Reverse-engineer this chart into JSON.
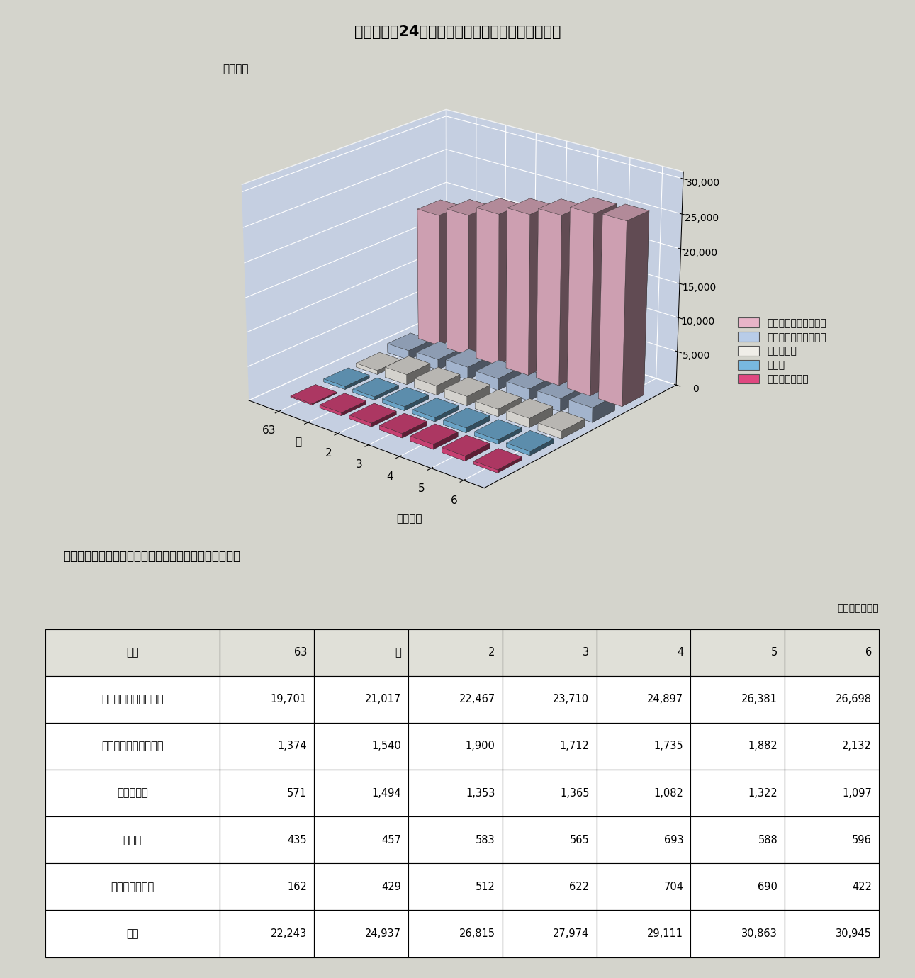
{
  "title": "第３－２－24図　情報通信産業の設備投資の推移",
  "years": [
    "63",
    "元",
    "2",
    "3",
    "4",
    "5",
    "6"
  ],
  "year_label": "（年度）",
  "y_label": "（億円）",
  "series": [
    {
      "name": "第一種電気通信事業者",
      "values": [
        19701,
        21017,
        22467,
        23710,
        24897,
        26381,
        26698
      ],
      "color_face": "#E8B4C8",
      "color_side": "#C890A8",
      "color_top": "#F0D0DC"
    },
    {
      "name": "第二種電気通信事業者",
      "values": [
        1374,
        1540,
        1900,
        1712,
        1735,
        1882,
        2132
      ],
      "color_face": "#B8CCE8",
      "color_side": "#90AACC",
      "color_top": "#D0DCEF"
    },
    {
      "name": "民放事業者",
      "values": [
        571,
        1494,
        1353,
        1365,
        1082,
        1322,
        1097
      ],
      "color_face": "#F0EEE8",
      "color_side": "#D0CCCC",
      "color_top": "#FFFFFF"
    },
    {
      "name": "ＮＨＫ",
      "values": [
        435,
        457,
        583,
        565,
        693,
        588,
        596
      ],
      "color_face": "#78B8E0",
      "color_side": "#5090BC",
      "color_top": "#A0CCF0"
    },
    {
      "name": "ケーブルテレビ",
      "values": [
        162,
        429,
        512,
        622,
        704,
        690,
        422
      ],
      "color_face": "#E04880",
      "color_side": "#BC2060",
      "color_top": "#F070A0"
    }
  ],
  "yticks": [
    0,
    5000,
    10000,
    15000,
    20000,
    25000,
    30000
  ],
  "source_text": "「通信産業設備投資等実態調査」（郵政省）により作成",
  "unit_text": "（単位：億円）",
  "table_headers": [
    "年度",
    "63",
    "元",
    "2",
    "3",
    "4",
    "5",
    "6"
  ],
  "table_rows": [
    [
      "第一種電気通信事業者",
      "19,701",
      "21,017",
      "22,467",
      "23,710",
      "24,897",
      "26,381",
      "26,698"
    ],
    [
      "第二種電気通信事業者",
      "1,374",
      "1,540",
      "1,900",
      "1,712",
      "1,735",
      "1,882",
      "2,132"
    ],
    [
      "民放事業者",
      "571",
      "1,494",
      "1,353",
      "1,365",
      "1,082",
      "1,322",
      "1,097"
    ],
    [
      "ＮＨＫ",
      "435",
      "457",
      "583",
      "565",
      "693",
      "588",
      "596"
    ],
    [
      "ケーブルテレビ",
      "162",
      "429",
      "512",
      "622",
      "704",
      "690",
      "422"
    ],
    [
      "合計",
      "22,243",
      "24,937",
      "26,815",
      "27,974",
      "29,111",
      "30,863",
      "30,945"
    ]
  ],
  "bg_color": "#D4D4CC",
  "wall_color": "#C0CEEA",
  "floor_color": "#707070",
  "elev": 22,
  "azim": -50
}
